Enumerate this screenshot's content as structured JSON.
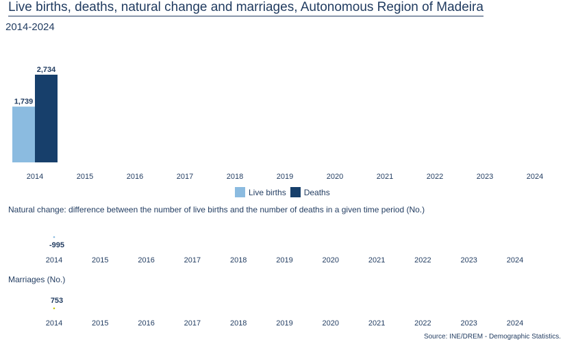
{
  "header": {
    "title": "Live births, deaths, natural change and marriages, Autonomous Region of Madeira",
    "subtitle": "2014-2024"
  },
  "legend": {
    "live_births": "Live births",
    "deaths": "Deaths"
  },
  "natural_change_label": "Natural change: difference between the number of live births and the number of deaths in a given time period (No.)",
  "marriages_label": "Marriages (No.)",
  "source": "Source: INE/DREM - Demographic Statistics.",
  "colors": {
    "live_births": "#8bbbe0",
    "deaths": "#173f6b",
    "natural_change": "#8bbbe0",
    "marriages": "#c8c800"
  },
  "chart_data": [
    {
      "type": "bar",
      "categories": [
        "2014",
        "2015",
        "2016",
        "2017",
        "2018",
        "2019",
        "2020",
        "2021",
        "2022",
        "2023",
        "2024"
      ],
      "series": [
        {
          "name": "Live births",
          "values": [
            1739,
            null,
            null,
            null,
            null,
            null,
            null,
            null,
            null,
            null,
            null
          ],
          "labels": [
            "1,739"
          ]
        },
        {
          "name": "Deaths",
          "values": [
            2734,
            null,
            null,
            null,
            null,
            null,
            null,
            null,
            null,
            null,
            null
          ],
          "labels": [
            "2,734"
          ]
        }
      ]
    },
    {
      "type": "line",
      "title": "Natural change: difference between the number of live births and the number of deaths in a given time period (No.)",
      "categories": [
        "2014",
        "2015",
        "2016",
        "2017",
        "2018",
        "2019",
        "2020",
        "2021",
        "2022",
        "2023",
        "2024"
      ],
      "values": [
        -995,
        null,
        null,
        null,
        null,
        null,
        null,
        null,
        null,
        null,
        null
      ],
      "labels": [
        "-995"
      ]
    },
    {
      "type": "line",
      "title": "Marriages (No.)",
      "categories": [
        "2014",
        "2015",
        "2016",
        "2017",
        "2018",
        "2019",
        "2020",
        "2021",
        "2022",
        "2023",
        "2024"
      ],
      "values": [
        753,
        null,
        null,
        null,
        null,
        null,
        null,
        null,
        null,
        null,
        null
      ],
      "labels": [
        "753"
      ]
    }
  ]
}
